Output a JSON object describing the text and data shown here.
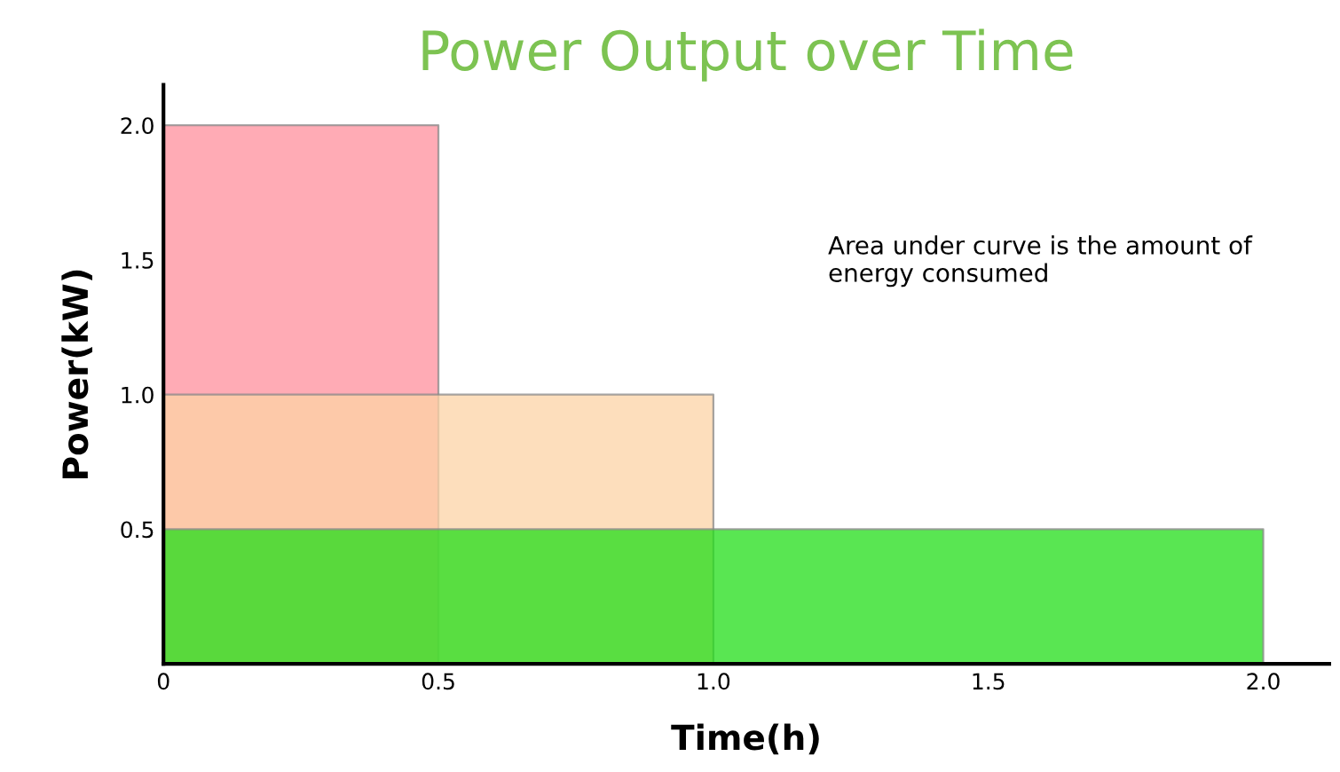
{
  "chart_data": {
    "type": "area",
    "title": "Power Output over Time",
    "xlabel": "Time(h)",
    "ylabel": "Power(kW)",
    "series": [
      {
        "x": [
          0,
          0.5
        ],
        "values": [
          2.0,
          2.0
        ],
        "color": "#ff8f9c"
      },
      {
        "x": [
          0,
          1.0
        ],
        "values": [
          1.0,
          1.0
        ],
        "color": "#fcd3a6"
      },
      {
        "x": [
          0,
          2.0
        ],
        "values": [
          0.5,
          0.5
        ],
        "color": "#22dd18"
      }
    ],
    "xlim": [
      0,
      2.12
    ],
    "ylim": [
      0,
      2.15
    ],
    "xticks": [
      0,
      {
        "value": 0.5,
        "label": "0.5"
      },
      {
        "value": 1,
        "label": "1.0"
      },
      {
        "value": 1.5,
        "label": "1.5"
      },
      {
        "value": 2,
        "label": "2.0"
      }
    ],
    "yticks": [
      {
        "value": 0.5,
        "label": "0.5"
      },
      {
        "value": 1,
        "label": "1.0"
      },
      {
        "value": 1.5,
        "label": "1.5"
      },
      {
        "value": 2,
        "label": "2.0"
      }
    ],
    "annotations": [
      "Area under curve is the amount of\nenergy consumed"
    ],
    "grid": false,
    "legend": false
  }
}
